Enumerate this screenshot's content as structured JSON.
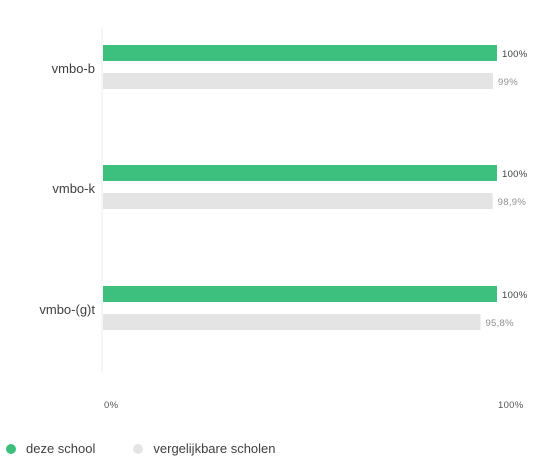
{
  "chart_data": {
    "type": "bar",
    "orientation": "horizontal",
    "categories": [
      "vmbo-b",
      "vmbo-k",
      "vmbo-(g)t"
    ],
    "series": [
      {
        "name": "deze school",
        "values": [
          100,
          100,
          100
        ],
        "labels": [
          "100%",
          "100%",
          "100%"
        ],
        "color": "#3dbf7d"
      },
      {
        "name": "vergelijkbare scholen",
        "values": [
          99,
          98.9,
          95.8
        ],
        "labels": [
          "99%",
          "98,9%",
          "95,8%"
        ],
        "color": "#e4e4e4"
      }
    ],
    "xlim": [
      0,
      100
    ],
    "xticks": [
      "0%",
      "100%"
    ],
    "grid": false,
    "legend_position": "bottom-left"
  }
}
